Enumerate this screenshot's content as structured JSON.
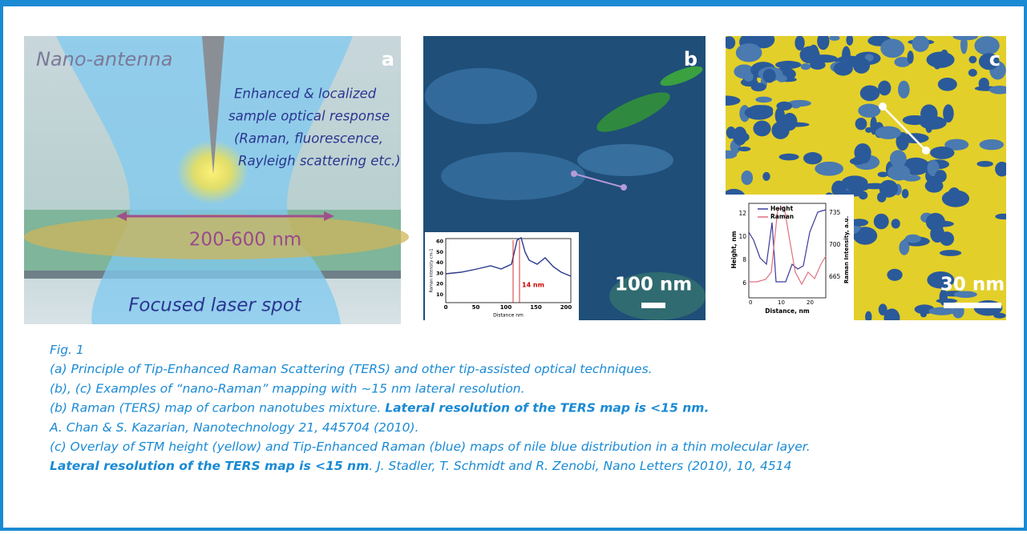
{
  "panels": [
    {
      "label": "a",
      "title": "Nano-antenna",
      "annotation": [
        "Enhanced & localized",
        "sample optical response",
        "(Raman, fluorescence,",
        "Rayleigh scattering etc.)"
      ],
      "dimension": "200-600 nm",
      "bottom": "Focused laser spot"
    },
    {
      "label": "b",
      "scale": "100 nm",
      "inset": {
        "ylabel": "Raman Intensity cm-1",
        "xlabel": "Distance nm",
        "xticks": [
          0,
          50,
          100,
          150,
          200
        ],
        "yticks": [
          10,
          20,
          30,
          40,
          50,
          60
        ],
        "annotation": "14 nm"
      }
    },
    {
      "label": "c",
      "scale": "30 nm",
      "inset": {
        "legend": [
          "Height",
          "Raman"
        ],
        "ylabel": "Height, nm",
        "y2label": "Raman Intensity, a.u.",
        "xlabel": "Distance, nm",
        "xticks": [
          0,
          10,
          20
        ],
        "yticks": [
          6,
          8,
          10,
          12
        ],
        "y2ticks": [
          665,
          700,
          735
        ]
      }
    }
  ],
  "caption": [
    [
      {
        "text": "Fig. 1",
        "bold": false
      }
    ],
    [
      {
        "text": "(a) Principle of Tip-Enhanced Raman Scattering (TERS) and other tip-assisted optical techniques.",
        "bold": false
      }
    ],
    [
      {
        "text": "(b), (c) Examples of “nano-Raman” mapping with ~15 nm lateral resolution.",
        "bold": false
      }
    ],
    [
      {
        "text": "(b) Raman (TERS) map of carbon nanotubes mixture. ",
        "bold": false
      },
      {
        "text": "Lateral resolution of the TERS map is <15 nm.",
        "bold": true
      }
    ],
    [
      {
        "text": "A. Chan & S. Kazarian, Nanotechnology 21, 445704 (2010).",
        "bold": false
      }
    ],
    [
      {
        "text": "(c) Overlay of STM height (yellow) and Tip-Enhanced Raman (blue) maps of nile blue distribution in  a thin molecular layer.",
        "bold": false
      }
    ],
    [
      {
        "text": "Lateral resolution of the TERS map is <15 nm",
        "bold": true
      },
      {
        "text": ". J. Stadler, T. Schmidt and R. Zenobi, Nano Letters (2010), 10, 4514",
        "bold": false
      }
    ]
  ]
}
